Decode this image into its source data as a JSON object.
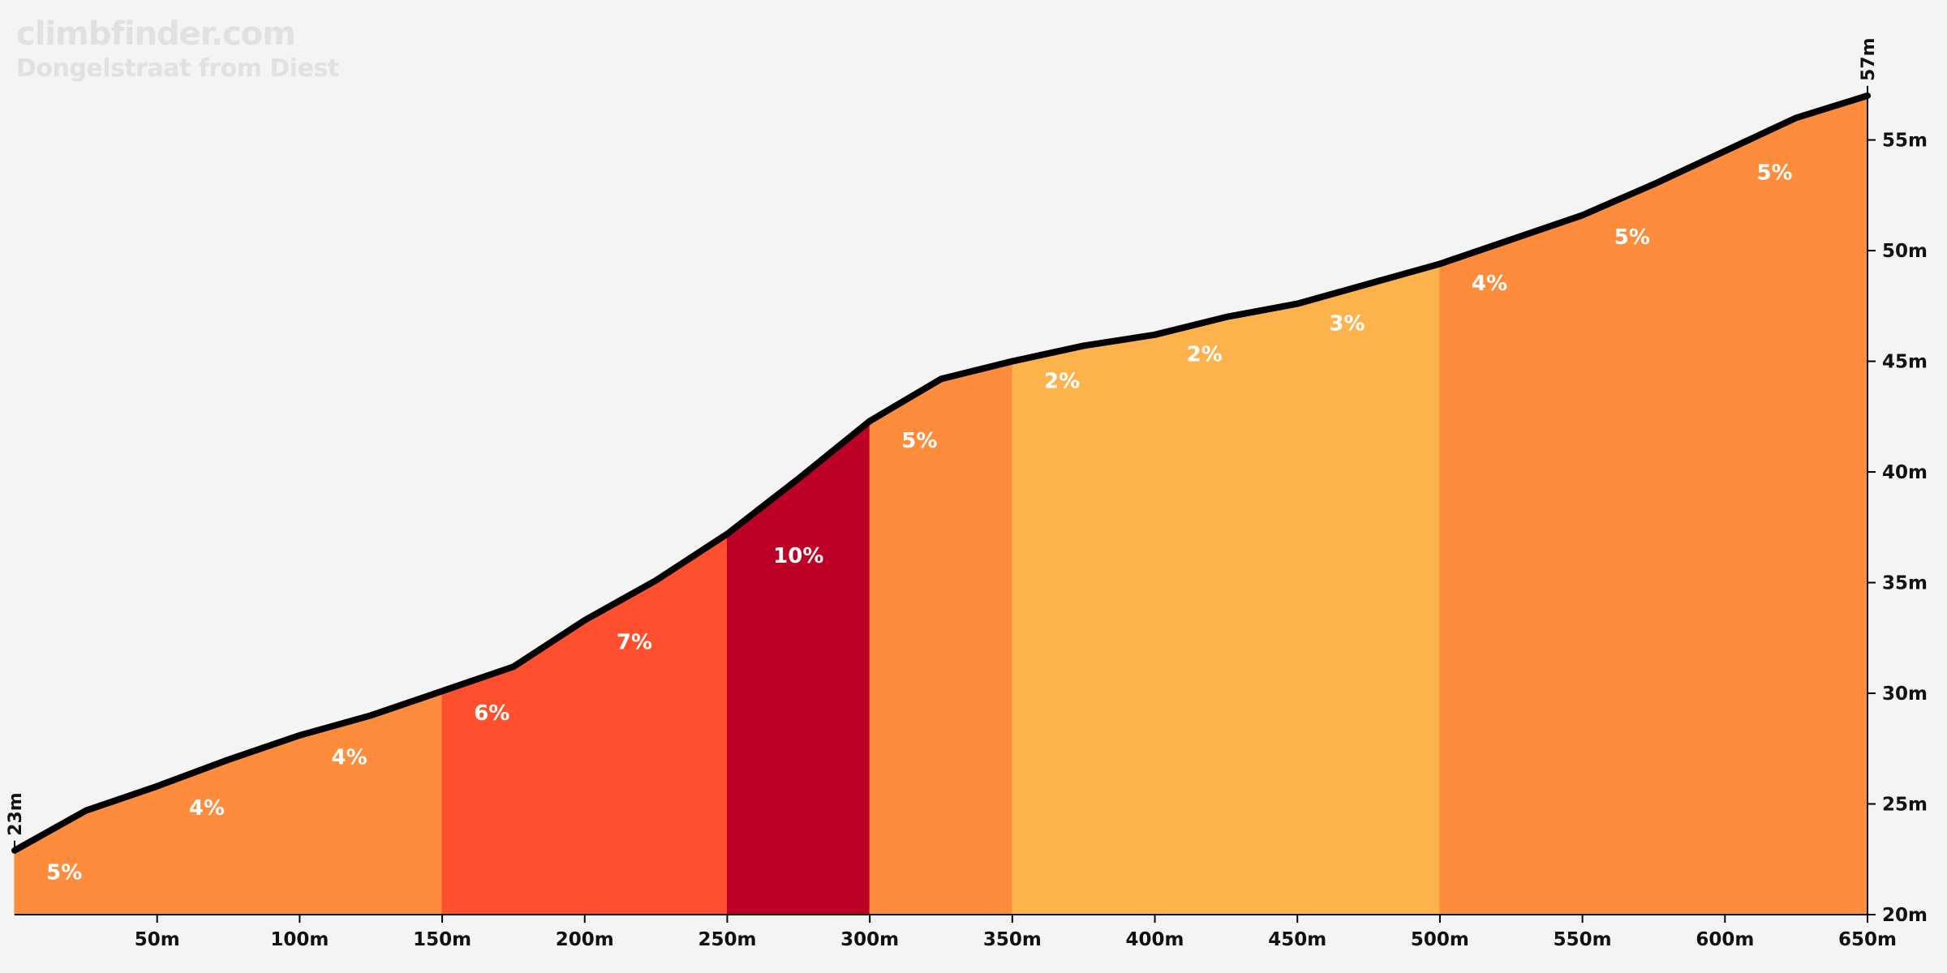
{
  "site": "climbfinder.com",
  "chart_data": {
    "type": "area",
    "title": "Dongelstraat from Diest",
    "xlabel": "",
    "ylabel": "",
    "xlim": [
      0,
      650
    ],
    "ylim": [
      20,
      57
    ],
    "x_ticks": [
      50,
      100,
      150,
      200,
      250,
      300,
      350,
      400,
      450,
      500,
      550,
      600,
      650
    ],
    "x_tick_labels": [
      "50m",
      "100m",
      "150m",
      "200m",
      "250m",
      "300m",
      "350m",
      "400m",
      "450m",
      "500m",
      "550m",
      "600m",
      "650m"
    ],
    "y_ticks": [
      20,
      25,
      30,
      35,
      40,
      45,
      50,
      55
    ],
    "y_tick_labels": [
      "20m",
      "25m",
      "30m",
      "35m",
      "40m",
      "45m",
      "50m",
      "55m"
    ],
    "start_label": "23m",
    "end_label": "57m",
    "profile": {
      "x": [
        0,
        25,
        50,
        75,
        100,
        125,
        150,
        175,
        200,
        225,
        250,
        275,
        300,
        325,
        350,
        375,
        400,
        425,
        450,
        475,
        500,
        525,
        550,
        575,
        600,
        625,
        650
      ],
      "elevation": [
        22.9,
        24.7,
        25.8,
        27.0,
        28.1,
        29.0,
        30.1,
        31.2,
        33.3,
        35.1,
        37.2,
        39.7,
        42.3,
        44.2,
        45.0,
        45.7,
        46.2,
        47.0,
        47.6,
        48.5,
        49.4,
        50.5,
        51.6,
        53.0,
        54.5,
        56.0,
        57.0
      ]
    },
    "segments": [
      {
        "start": 0,
        "end": 150,
        "color": "#fe8c3d"
      },
      {
        "start": 150,
        "end": 250,
        "color": "#fe502e"
      },
      {
        "start": 250,
        "end": 300,
        "color": "#bd0026"
      },
      {
        "start": 300,
        "end": 350,
        "color": "#fe8c3d"
      },
      {
        "start": 350,
        "end": 500,
        "color": "#feb24c"
      },
      {
        "start": 500,
        "end": 650,
        "color": "#fe8c3d"
      }
    ],
    "grade_labels": [
      {
        "text": "5%",
        "x": 10,
        "y": 21.6
      },
      {
        "text": "4%",
        "x": 60,
        "y": 24.5
      },
      {
        "text": "4%",
        "x": 110,
        "y": 26.8
      },
      {
        "text": "6%",
        "x": 160,
        "y": 28.8
      },
      {
        "text": "7%",
        "x": 210,
        "y": 32.0
      },
      {
        "text": "10%",
        "x": 265,
        "y": 35.9
      },
      {
        "text": "5%",
        "x": 310,
        "y": 41.1
      },
      {
        "text": "2%",
        "x": 360,
        "y": 43.8
      },
      {
        "text": "2%",
        "x": 410,
        "y": 45.0
      },
      {
        "text": "3%",
        "x": 460,
        "y": 46.4
      },
      {
        "text": "4%",
        "x": 510,
        "y": 48.2
      },
      {
        "text": "5%",
        "x": 560,
        "y": 50.3
      },
      {
        "text": "5%",
        "x": 610,
        "y": 53.2
      }
    ],
    "colors": {
      "line": "#000000",
      "background": "#f4f4f4"
    }
  }
}
